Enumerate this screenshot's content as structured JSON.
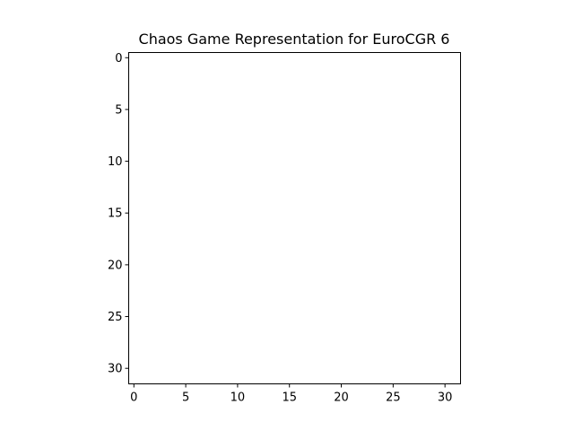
{
  "chart_data": {
    "type": "heatmap",
    "title": "Chaos Game Representation for EuroCGR 6",
    "xlabel": "",
    "ylabel": "",
    "xlim": [
      -0.5,
      31.5
    ],
    "ylim": [
      31.5,
      -0.5
    ],
    "x_ticks": [
      0,
      5,
      10,
      15,
      20,
      25,
      30
    ],
    "y_ticks": [
      0,
      5,
      10,
      15,
      20,
      25,
      30
    ],
    "x_tick_labels": [
      "0",
      "5",
      "10",
      "15",
      "20",
      "25",
      "30"
    ],
    "y_tick_labels": [
      "0",
      "5",
      "10",
      "15",
      "20",
      "25",
      "30"
    ],
    "grid": false,
    "cells": [],
    "background_color": "#ffffff",
    "frame_color": "#000000"
  }
}
